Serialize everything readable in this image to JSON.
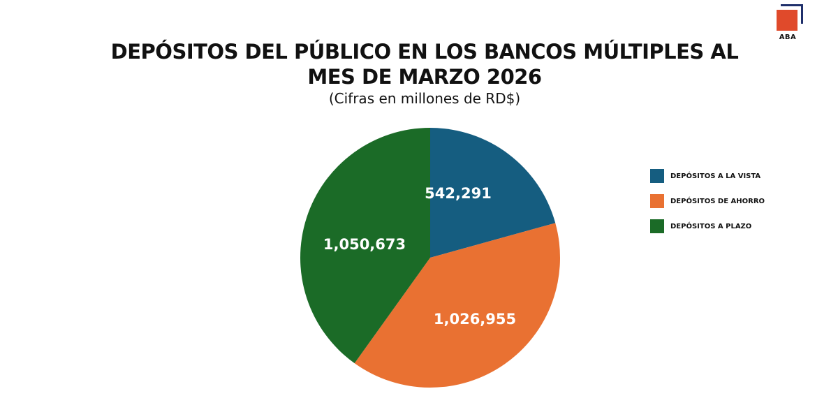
{
  "logo": {
    "text": "ABA",
    "colors": {
      "square": "#e04a2b",
      "corner": "#1f2f6b"
    }
  },
  "chart_data": {
    "type": "pie",
    "title_line1": "DEPÓSITOS DEL PÚBLICO EN LOS BANCOS MÚLTIPLES AL",
    "title_line2": "MES DE MARZO 2026",
    "subtitle": "(Cifras en millones de RD$)",
    "legend_position": "right",
    "slices": [
      {
        "label": "DEPÓSITOS A LA VISTA",
        "value": 542291,
        "display": "542,291",
        "color": "#155d80"
      },
      {
        "label": "DEPÓSITOS DE AHORRO",
        "value": 1026955,
        "display": "1,026,955",
        "color": "#e97132"
      },
      {
        "label": "DEPÓSITOS A PLAZO",
        "value": 1050673,
        "display": "1,050,673",
        "color": "#1b6b27"
      }
    ]
  }
}
